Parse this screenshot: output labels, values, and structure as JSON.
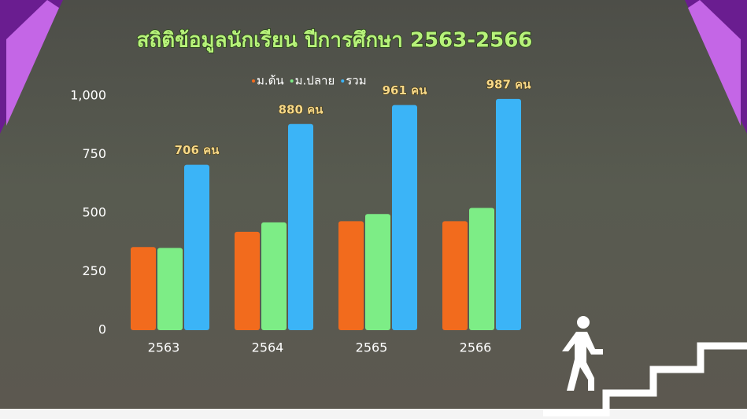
{
  "chart_data": {
    "type": "bar",
    "title": "สถิติข้อมูลนักเรียน ปีการศึกษา 2563-2566",
    "categories": [
      "2563",
      "2564",
      "2565",
      "2566"
    ],
    "series": [
      {
        "name": "ม.ต้น",
        "color": "#f26b1d",
        "values": [
          355,
          420,
          465,
          465
        ]
      },
      {
        "name": "ม.ปลาย",
        "color": "#7ded86",
        "values": [
          351,
          460,
          496,
          522
        ]
      },
      {
        "name": "รวม",
        "color": "#3bb4f7",
        "values": [
          706,
          880,
          961,
          987
        ],
        "value_labels": [
          "706 คน",
          "880 คน",
          "961 คน",
          "987 คน"
        ]
      }
    ],
    "ylim": [
      0,
      1000
    ],
    "yticks": [
      0,
      250,
      500,
      750,
      {
        "value": 1000,
        "label": "1,000"
      }
    ],
    "legend": "top"
  }
}
